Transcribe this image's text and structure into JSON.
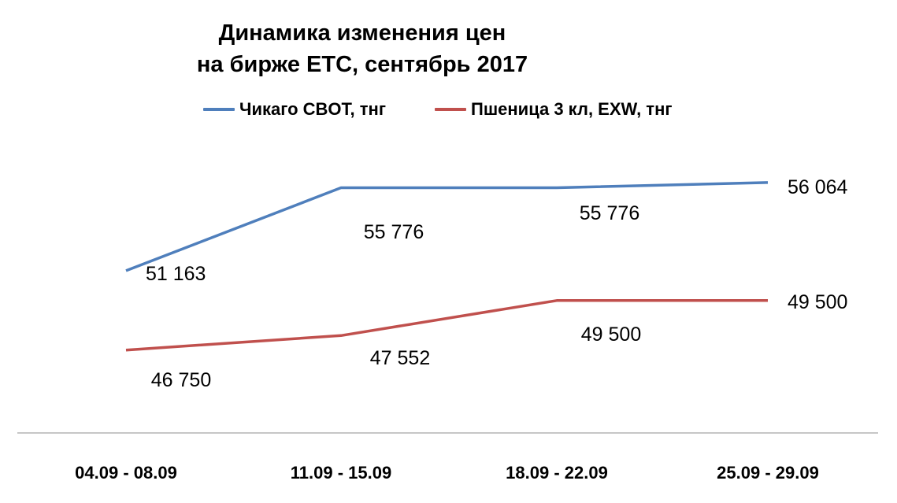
{
  "chart_data": {
    "type": "line",
    "title": [
      "Динамика изменения цен",
      "на бирже ЕТС, сентябрь 2017"
    ],
    "categories": [
      "04.09 - 08.09",
      "11.09 - 15.09",
      "18.09 - 22.09",
      "25.09 - 29.09"
    ],
    "series": [
      {
        "name": "Чикаго CBOT, тнг",
        "color": "#4f7fbc",
        "values": [
          51163,
          55776,
          55776,
          56064
        ],
        "labels": [
          "51 163",
          "55 776",
          "55 776",
          "56 064"
        ]
      },
      {
        "name": "Пшеница 3 кл, EXW, тнг",
        "color": "#c0504d",
        "values": [
          46750,
          47552,
          49500,
          49500
        ],
        "labels": [
          "46 750",
          "47 552",
          "49 500",
          "49 500"
        ]
      }
    ],
    "ylim": [
      42000,
      62000
    ],
    "legend": "top",
    "grid": false
  }
}
